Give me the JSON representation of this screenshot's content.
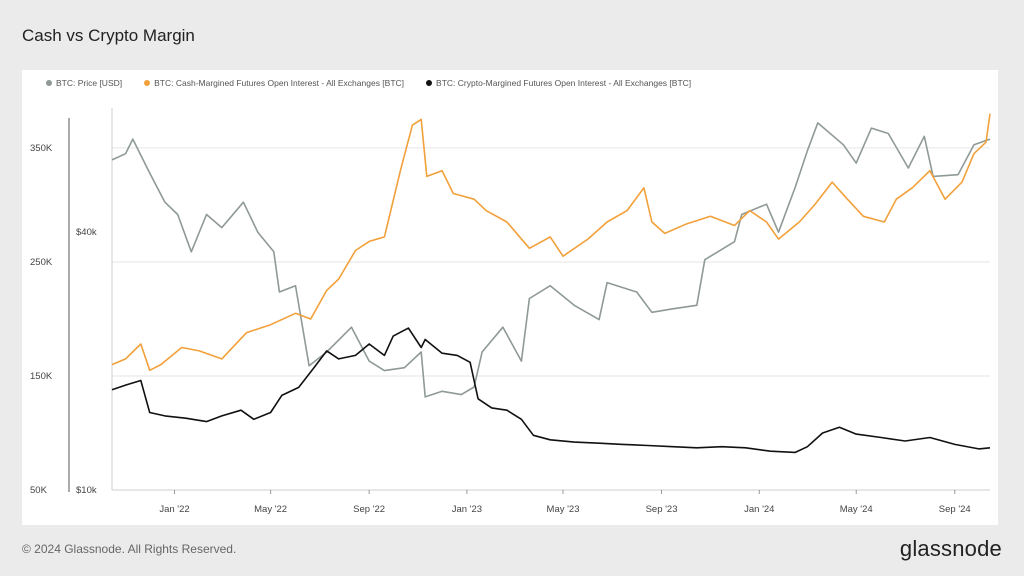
{
  "page": {
    "title": "Cash vs Crypto Margin",
    "copyright": "© 2024 Glassnode. All Rights Reserved.",
    "logo_text": "glassnode"
  },
  "chart_data": {
    "type": "line",
    "title": "Cash vs Crypto Margin",
    "x_ticks": [
      "Jan '22",
      "May '22",
      "Sep '22",
      "Jan '23",
      "May '23",
      "Sep '23",
      "Jan '24",
      "May '24",
      "Sep '24"
    ],
    "x_range": [
      "2021-10-15",
      "2024-10-15"
    ],
    "y_left": {
      "ticks": [
        "50K",
        "150K",
        "250K",
        "350K"
      ],
      "tick_values": [
        50000,
        150000,
        250000,
        350000
      ],
      "range": [
        50000,
        385000
      ]
    },
    "y_price": {
      "ticks": [
        "$10k",
        "$40k"
      ],
      "tick_values": [
        10000,
        40000
      ],
      "scale": "log",
      "range": [
        10000,
        78000
      ]
    },
    "grid": true,
    "legend_position": "top-left",
    "series": [
      {
        "name": "BTC: Price [USD]",
        "color": "#8f9a96",
        "axis": "price",
        "points": [
          [
            "2021-10-15",
            59000
          ],
          [
            "2021-11-01",
            61000
          ],
          [
            "2021-11-10",
            66000
          ],
          [
            "2021-12-01",
            55000
          ],
          [
            "2021-12-20",
            47000
          ],
          [
            "2022-01-05",
            44000
          ],
          [
            "2022-01-22",
            36000
          ],
          [
            "2022-02-10",
            44000
          ],
          [
            "2022-03-01",
            41000
          ],
          [
            "2022-03-28",
            47000
          ],
          [
            "2022-04-15",
            40000
          ],
          [
            "2022-05-05",
            36000
          ],
          [
            "2022-05-12",
            29000
          ],
          [
            "2022-06-01",
            30000
          ],
          [
            "2022-06-18",
            19500
          ],
          [
            "2022-07-10",
            21000
          ],
          [
            "2022-08-10",
            24000
          ],
          [
            "2022-09-01",
            20000
          ],
          [
            "2022-09-20",
            19000
          ],
          [
            "2022-10-15",
            19300
          ],
          [
            "2022-11-05",
            21000
          ],
          [
            "2022-11-10",
            16500
          ],
          [
            "2022-12-01",
            17000
          ],
          [
            "2022-12-25",
            16700
          ],
          [
            "2023-01-10",
            17400
          ],
          [
            "2023-01-20",
            21000
          ],
          [
            "2023-02-15",
            24000
          ],
          [
            "2023-03-10",
            20000
          ],
          [
            "2023-03-20",
            28000
          ],
          [
            "2023-04-15",
            30000
          ],
          [
            "2023-05-15",
            27000
          ],
          [
            "2023-06-15",
            25000
          ],
          [
            "2023-06-25",
            30500
          ],
          [
            "2023-08-01",
            29000
          ],
          [
            "2023-08-20",
            26000
          ],
          [
            "2023-09-15",
            26500
          ],
          [
            "2023-10-15",
            27000
          ],
          [
            "2023-10-25",
            34500
          ],
          [
            "2023-12-01",
            38000
          ],
          [
            "2023-12-10",
            44000
          ],
          [
            "2024-01-10",
            46500
          ],
          [
            "2024-01-25",
            40000
          ],
          [
            "2024-02-15",
            51000
          ],
          [
            "2024-03-01",
            62000
          ],
          [
            "2024-03-14",
            72000
          ],
          [
            "2024-04-15",
            64000
          ],
          [
            "2024-05-01",
            58000
          ],
          [
            "2024-05-20",
            70000
          ],
          [
            "2024-06-10",
            68000
          ],
          [
            "2024-07-05",
            56500
          ],
          [
            "2024-07-25",
            67000
          ],
          [
            "2024-08-05",
            54000
          ],
          [
            "2024-09-05",
            54500
          ],
          [
            "2024-09-25",
            64000
          ],
          [
            "2024-10-15",
            66000
          ]
        ]
      },
      {
        "name": "BTC: Cash-Margined Futures Open Interest - All Exchanges [BTC]",
        "color": "#f2a03a",
        "axis": "left",
        "points": [
          [
            "2021-10-15",
            160000
          ],
          [
            "2021-11-01",
            165000
          ],
          [
            "2021-11-20",
            178000
          ],
          [
            "2021-12-01",
            155000
          ],
          [
            "2021-12-15",
            160000
          ],
          [
            "2022-01-10",
            175000
          ],
          [
            "2022-02-01",
            172000
          ],
          [
            "2022-03-01",
            165000
          ],
          [
            "2022-04-01",
            188000
          ],
          [
            "2022-05-01",
            195000
          ],
          [
            "2022-06-01",
            205000
          ],
          [
            "2022-06-20",
            200000
          ],
          [
            "2022-07-10",
            225000
          ],
          [
            "2022-07-25",
            235000
          ],
          [
            "2022-08-15",
            260000
          ],
          [
            "2022-09-01",
            268000
          ],
          [
            "2022-09-20",
            272000
          ],
          [
            "2022-10-10",
            330000
          ],
          [
            "2022-10-25",
            370000
          ],
          [
            "2022-11-05",
            375000
          ],
          [
            "2022-11-12",
            325000
          ],
          [
            "2022-12-01",
            330000
          ],
          [
            "2022-12-15",
            310000
          ],
          [
            "2023-01-10",
            305000
          ],
          [
            "2023-01-25",
            295000
          ],
          [
            "2023-02-20",
            285000
          ],
          [
            "2023-03-20",
            262000
          ],
          [
            "2023-04-15",
            272000
          ],
          [
            "2023-05-01",
            255000
          ],
          [
            "2023-06-01",
            270000
          ],
          [
            "2023-06-25",
            285000
          ],
          [
            "2023-07-20",
            295000
          ],
          [
            "2023-08-10",
            315000
          ],
          [
            "2023-08-20",
            285000
          ],
          [
            "2023-09-05",
            275000
          ],
          [
            "2023-10-01",
            283000
          ],
          [
            "2023-11-01",
            290000
          ],
          [
            "2023-12-01",
            282000
          ],
          [
            "2023-12-20",
            295000
          ],
          [
            "2024-01-10",
            285000
          ],
          [
            "2024-01-25",
            270000
          ],
          [
            "2024-02-20",
            285000
          ],
          [
            "2024-03-10",
            300000
          ],
          [
            "2024-04-01",
            320000
          ],
          [
            "2024-04-20",
            305000
          ],
          [
            "2024-05-10",
            290000
          ],
          [
            "2024-06-05",
            285000
          ],
          [
            "2024-06-20",
            305000
          ],
          [
            "2024-07-10",
            315000
          ],
          [
            "2024-08-01",
            330000
          ],
          [
            "2024-08-20",
            305000
          ],
          [
            "2024-09-10",
            320000
          ],
          [
            "2024-09-25",
            345000
          ],
          [
            "2024-10-10",
            355000
          ],
          [
            "2024-10-15",
            380000
          ]
        ]
      },
      {
        "name": "BTC: Crypto-Margined Futures Open Interest - All Exchanges [BTC]",
        "color": "#111111",
        "axis": "left",
        "points": [
          [
            "2021-10-15",
            138000
          ],
          [
            "2021-11-01",
            142000
          ],
          [
            "2021-11-20",
            146000
          ],
          [
            "2021-12-01",
            118000
          ],
          [
            "2021-12-20",
            115000
          ],
          [
            "2022-01-15",
            113000
          ],
          [
            "2022-02-10",
            110000
          ],
          [
            "2022-03-01",
            115000
          ],
          [
            "2022-03-25",
            120000
          ],
          [
            "2022-04-10",
            112000
          ],
          [
            "2022-05-01",
            118000
          ],
          [
            "2022-05-15",
            133000
          ],
          [
            "2022-06-05",
            140000
          ],
          [
            "2022-06-25",
            158000
          ],
          [
            "2022-07-10",
            172000
          ],
          [
            "2022-07-25",
            165000
          ],
          [
            "2022-08-15",
            168000
          ],
          [
            "2022-09-01",
            178000
          ],
          [
            "2022-09-20",
            168000
          ],
          [
            "2022-10-01",
            185000
          ],
          [
            "2022-10-20",
            192000
          ],
          [
            "2022-11-05",
            175000
          ],
          [
            "2022-11-10",
            182000
          ],
          [
            "2022-12-01",
            170000
          ],
          [
            "2022-12-20",
            168000
          ],
          [
            "2023-01-05",
            162000
          ],
          [
            "2023-01-15",
            130000
          ],
          [
            "2023-02-01",
            122000
          ],
          [
            "2023-02-20",
            120000
          ],
          [
            "2023-03-10",
            112000
          ],
          [
            "2023-03-25",
            98000
          ],
          [
            "2023-04-15",
            94000
          ],
          [
            "2023-05-15",
            92000
          ],
          [
            "2023-06-15",
            91000
          ],
          [
            "2023-07-15",
            90000
          ],
          [
            "2023-08-15",
            89000
          ],
          [
            "2023-09-15",
            88000
          ],
          [
            "2023-10-15",
            87000
          ],
          [
            "2023-11-15",
            88000
          ],
          [
            "2023-12-15",
            87000
          ],
          [
            "2024-01-15",
            84000
          ],
          [
            "2024-02-15",
            83000
          ],
          [
            "2024-03-01",
            88000
          ],
          [
            "2024-03-20",
            100000
          ],
          [
            "2024-04-10",
            105000
          ],
          [
            "2024-05-01",
            99000
          ],
          [
            "2024-06-01",
            96000
          ],
          [
            "2024-07-01",
            93000
          ],
          [
            "2024-08-01",
            96000
          ],
          [
            "2024-09-01",
            90000
          ],
          [
            "2024-10-01",
            86000
          ],
          [
            "2024-10-15",
            87000
          ]
        ]
      }
    ]
  }
}
